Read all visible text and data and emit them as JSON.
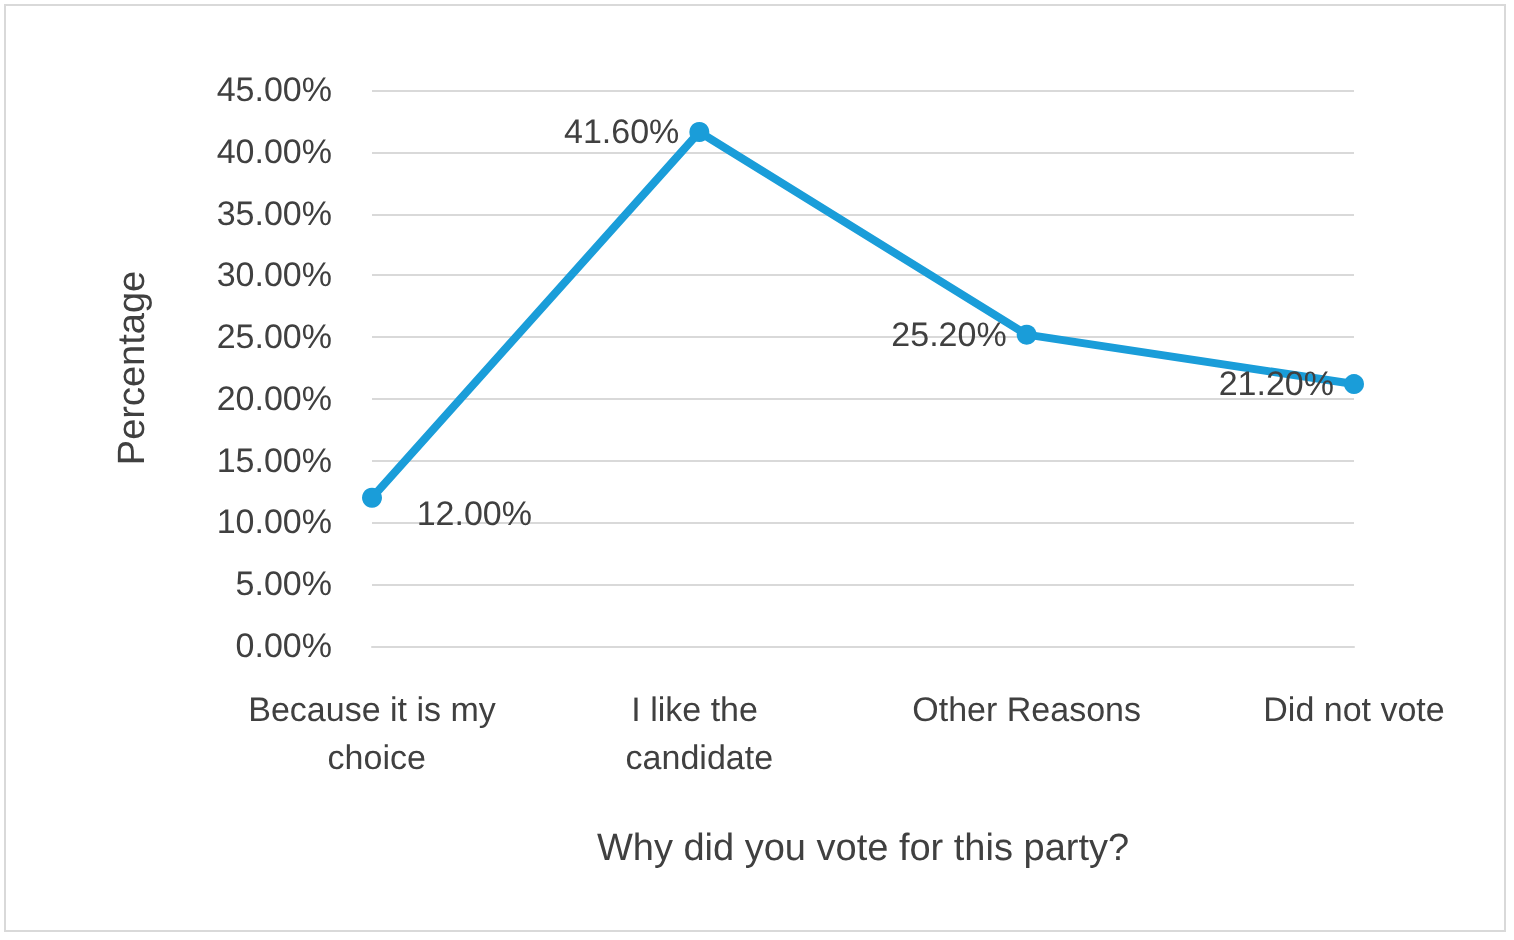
{
  "chart_data": {
    "type": "line",
    "xlabel": "Why did you vote for this party?",
    "ylabel": "Percentage",
    "categories": [
      "Because it is my choice",
      "I like the candidate",
      "Other Reasons",
      "Did not vote"
    ],
    "series": [
      {
        "color": "#1a9dd9",
        "values": [
          12,
          41.6,
          25.2,
          21.2
        ],
        "value_labels": [
          "12.00%",
          "41.60%",
          "25.20%",
          "21.20%"
        ]
      }
    ],
    "ylim": [
      0,
      45
    ],
    "yticks": [
      {
        "value": 0,
        "label": "0.00%"
      },
      {
        "value": 5,
        "label": "5.00%"
      },
      {
        "value": 10,
        "label": "10.00%"
      },
      {
        "value": 15,
        "label": "15.00%"
      },
      {
        "value": 20,
        "label": "20.00%"
      },
      {
        "value": 25,
        "label": "25.00%"
      },
      {
        "value": 30,
        "label": "30.00%"
      },
      {
        "value": 35,
        "label": "35.00%"
      },
      {
        "value": 40,
        "label": "40.00%"
      },
      {
        "value": 45,
        "label": "45.00%"
      }
    ],
    "grid": "y",
    "marker": "circle",
    "line_style": "solid"
  }
}
